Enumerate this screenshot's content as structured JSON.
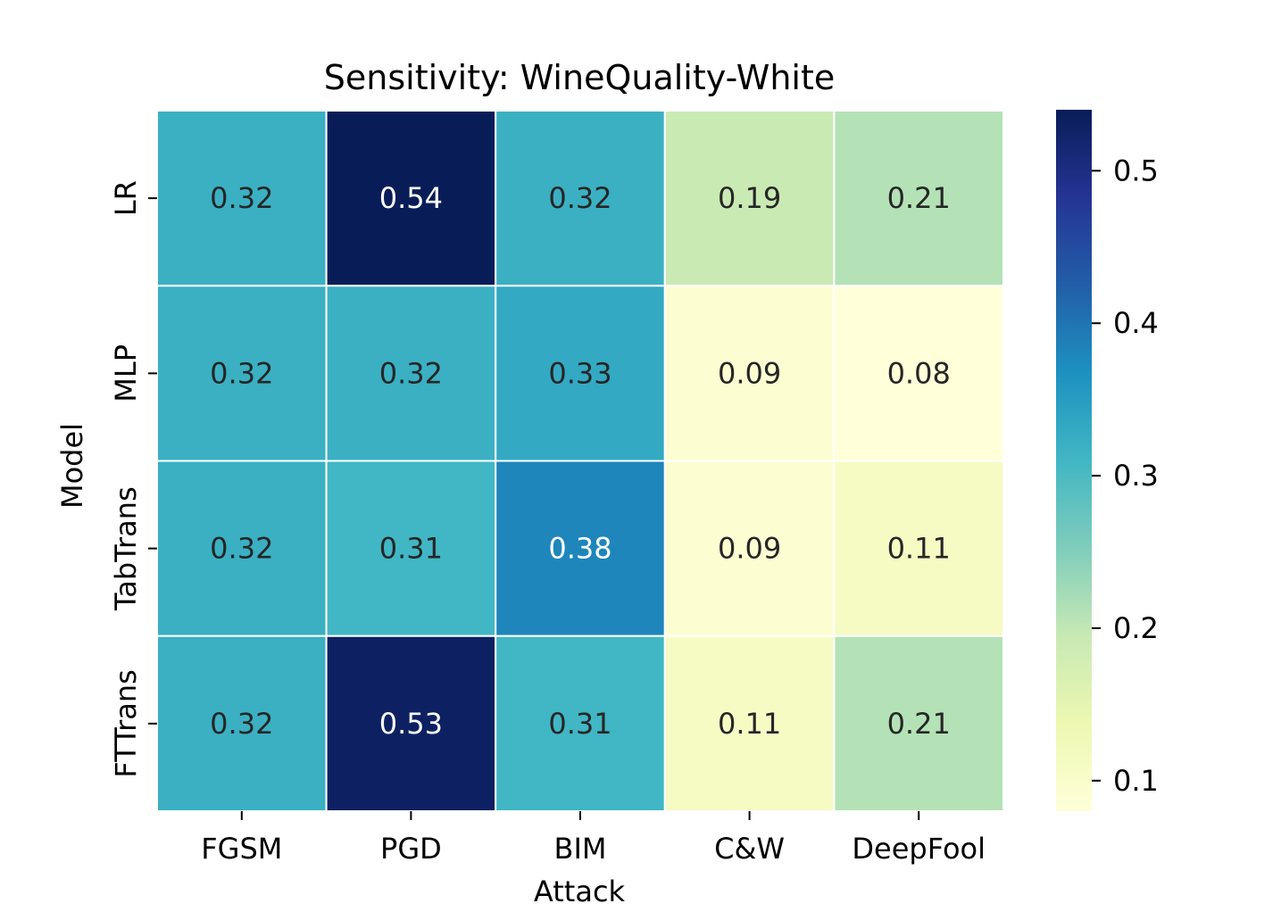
{
  "chart_data": {
    "type": "heatmap",
    "title": "Sensitivity: WineQuality-White",
    "xlabel": "Attack",
    "ylabel": "Model",
    "columns": [
      "FGSM",
      "PGD",
      "BIM",
      "C&W",
      "DeepFool"
    ],
    "rows": [
      "LR",
      "MLP",
      "TabTrans",
      "FTTrans"
    ],
    "values": [
      [
        0.32,
        0.54,
        0.32,
        0.19,
        0.21
      ],
      [
        0.32,
        0.32,
        0.33,
        0.09,
        0.08
      ],
      [
        0.32,
        0.31,
        0.38,
        0.09,
        0.11
      ],
      [
        0.32,
        0.53,
        0.31,
        0.11,
        0.21
      ]
    ],
    "value_labels": [
      [
        "0.32",
        "0.54",
        "0.32",
        "0.19",
        "0.21"
      ],
      [
        "0.32",
        "0.32",
        "0.33",
        "0.09",
        "0.08"
      ],
      [
        "0.32",
        "0.31",
        "0.38",
        "0.09",
        "0.11"
      ],
      [
        "0.32",
        "0.53",
        "0.31",
        "0.11",
        "0.21"
      ]
    ],
    "colormap": "YlGnBu",
    "colorbar": {
      "range": [
        0.08,
        0.54
      ],
      "ticks": [
        0.1,
        0.2,
        0.3,
        0.4,
        0.5
      ],
      "tick_labels": [
        "0.1",
        "0.2",
        "0.3",
        "0.4",
        "0.5"
      ]
    },
    "colors": {
      "dark_text": "#262626",
      "light_text": "#ffffff",
      "cell_border": "#ffffff",
      "axis": "#000000"
    }
  }
}
